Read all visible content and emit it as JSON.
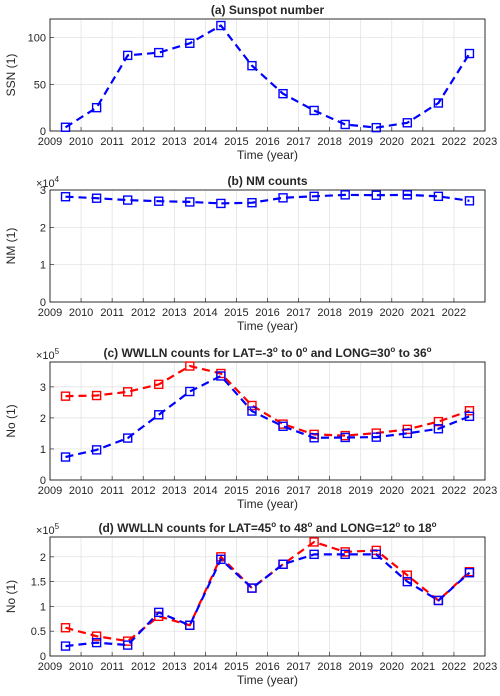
{
  "figure": {
    "type": "line"
  },
  "colors": {
    "blue": "#0000ff",
    "red": "#ff0000",
    "axis": "#262626",
    "grid": "#dfdfdf"
  },
  "chart_data": [
    {
      "id": "ssn",
      "type": "line",
      "title": "(a) Sunspot number",
      "xlabel": "Time (year)",
      "ylabel": "SSN (1)",
      "xlim": [
        2009,
        2023
      ],
      "ylim": [
        0,
        120
      ],
      "xticks": [
        2009,
        2010,
        2011,
        2012,
        2013,
        2014,
        2015,
        2016,
        2017,
        2018,
        2019,
        2020,
        2021,
        2022,
        2023
      ],
      "yticks": [
        0,
        50,
        100
      ],
      "ytick_labels": [
        "0",
        "50",
        "100"
      ],
      "grid": true,
      "series": [
        {
          "color": "#0000ff",
          "marker": "square",
          "dash": "dashed",
          "x": [
            2009.5,
            2010.5,
            2011.5,
            2012.5,
            2013.5,
            2014.5,
            2015.5,
            2016.5,
            2017.5,
            2018.5,
            2019.5,
            2020.5,
            2021.5,
            2022.5
          ],
          "y": [
            4,
            25,
            81,
            84,
            94,
            113,
            70,
            40,
            22,
            7,
            3.6,
            8.8,
            30,
            83
          ]
        }
      ]
    },
    {
      "id": "nm",
      "type": "line",
      "title": "(b) NM counts",
      "xlabel": "Time (year)",
      "ylabel": "NM (1)",
      "exponent": "4",
      "xlim": [
        2009,
        2023
      ],
      "ylim": [
        0,
        30000
      ],
      "xticks": [
        2009,
        2010,
        2011,
        2012,
        2013,
        2014,
        2015,
        2016,
        2017,
        2018,
        2019,
        2020,
        2021,
        2022
      ],
      "yticks": [
        0,
        10000,
        20000,
        30000
      ],
      "ytick_labels": [
        "0",
        "1",
        "2",
        "3"
      ],
      "grid": true,
      "series": [
        {
          "color": "#0000ff",
          "marker": "square",
          "dash": "dashed",
          "x": [
            2009.5,
            2010.5,
            2011.5,
            2012.5,
            2013.5,
            2014.5,
            2015.5,
            2016.5,
            2017.5,
            2018.5,
            2019.5,
            2020.5,
            2021.5,
            2022.5
          ],
          "y": [
            28200,
            27800,
            27300,
            27000,
            26800,
            26400,
            26600,
            27900,
            28300,
            28700,
            28600,
            28700,
            28300,
            27100
          ]
        }
      ]
    },
    {
      "id": "wwlln_c",
      "type": "line",
      "title": "(c) WWLLN counts for LAT=-3° to 0° and LONG=30° to 36°",
      "xlabel": "Time (year)",
      "ylabel": "No (1)",
      "exponent": "5",
      "xlim": [
        2009,
        2023
      ],
      "ylim": [
        0,
        380000
      ],
      "xticks": [
        2009,
        2010,
        2011,
        2012,
        2013,
        2014,
        2015,
        2016,
        2017,
        2018,
        2019,
        2020,
        2021,
        2022,
        2023
      ],
      "yticks": [
        0,
        100000,
        200000,
        300000
      ],
      "ytick_labels": [
        "0",
        "1",
        "2",
        "3"
      ],
      "grid": true,
      "series": [
        {
          "color": "#ff0000",
          "marker": "square",
          "dash": "dashed",
          "x": [
            2009.5,
            2010.5,
            2011.5,
            2012.5,
            2013.5,
            2014.5,
            2015.5,
            2016.5,
            2017.5,
            2018.5,
            2019.5,
            2020.5,
            2021.5,
            2022.5
          ],
          "y": [
            270000,
            272000,
            284000,
            308000,
            367000,
            343000,
            240000,
            180000,
            147000,
            143000,
            151000,
            163000,
            188000,
            223000
          ]
        },
        {
          "color": "#0000ff",
          "marker": "square",
          "dash": "dashed",
          "x": [
            2009.5,
            2010.5,
            2011.5,
            2012.5,
            2013.5,
            2014.5,
            2015.5,
            2016.5,
            2017.5,
            2018.5,
            2019.5,
            2020.5,
            2021.5,
            2022.5
          ],
          "y": [
            74000,
            97000,
            135000,
            210000,
            285000,
            335000,
            222000,
            173000,
            136000,
            137000,
            138000,
            150000,
            165000,
            205000
          ]
        }
      ]
    },
    {
      "id": "wwlln_d",
      "type": "line",
      "title": "(d) WWLLN counts for LAT=45° to 48° and LONG=12° to 18°",
      "xlabel": "Time (year)",
      "ylabel": "No (1)",
      "exponent": "5",
      "xlim": [
        2009,
        2023
      ],
      "ylim": [
        0,
        240000
      ],
      "xticks": [
        2009,
        2010,
        2011,
        2012,
        2013,
        2014,
        2015,
        2016,
        2017,
        2018,
        2019,
        2020,
        2021,
        2022,
        2023
      ],
      "yticks": [
        0,
        50000,
        100000,
        150000,
        200000
      ],
      "ytick_labels": [
        "0",
        "0.5",
        "1",
        "1.5",
        "2"
      ],
      "grid": true,
      "series": [
        {
          "color": "#ff0000",
          "marker": "square",
          "dash": "dashed",
          "x": [
            2009.5,
            2010.5,
            2011.5,
            2012.5,
            2013.5,
            2014.5,
            2015.5,
            2016.5,
            2017.5,
            2018.5,
            2019.5,
            2020.5,
            2021.5,
            2022.5
          ],
          "y": [
            57000,
            40000,
            30000,
            80000,
            62000,
            200000,
            137000,
            185000,
            230000,
            210000,
            213000,
            163000,
            112000,
            170000
          ]
        },
        {
          "color": "#0000ff",
          "marker": "square",
          "dash": "dashed",
          "x": [
            2009.5,
            2010.5,
            2011.5,
            2012.5,
            2013.5,
            2014.5,
            2015.5,
            2016.5,
            2017.5,
            2018.5,
            2019.5,
            2020.5,
            2021.5,
            2022.5
          ],
          "y": [
            20000,
            27000,
            22000,
            88000,
            62000,
            195000,
            137000,
            185000,
            205000,
            205000,
            205000,
            150000,
            112000,
            168000
          ]
        }
      ]
    }
  ]
}
